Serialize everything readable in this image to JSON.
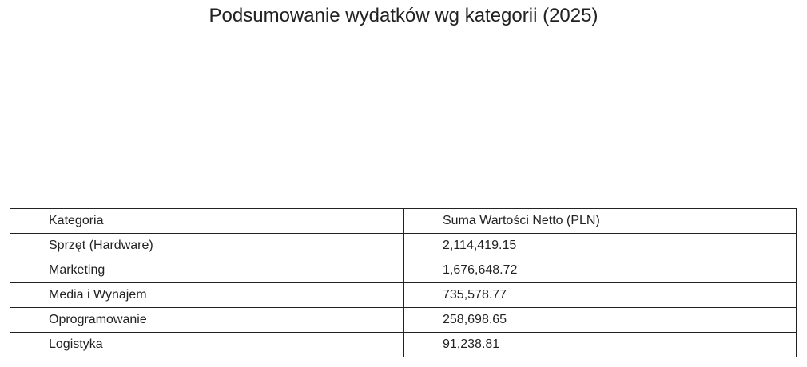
{
  "title": "Podsumowanie wydatków wg kategorii (2025)",
  "table": {
    "headers": [
      "Kategoria",
      "Suma Wartości Netto (PLN)"
    ],
    "rows": [
      [
        "Sprzęt (Hardware)",
        "2,114,419.15"
      ],
      [
        "Marketing",
        "1,676,648.72"
      ],
      [
        "Media i Wynajem",
        "735,578.77"
      ],
      [
        "Oprogramowanie",
        "258,698.65"
      ],
      [
        "Logistyka",
        "91,238.81"
      ]
    ]
  }
}
